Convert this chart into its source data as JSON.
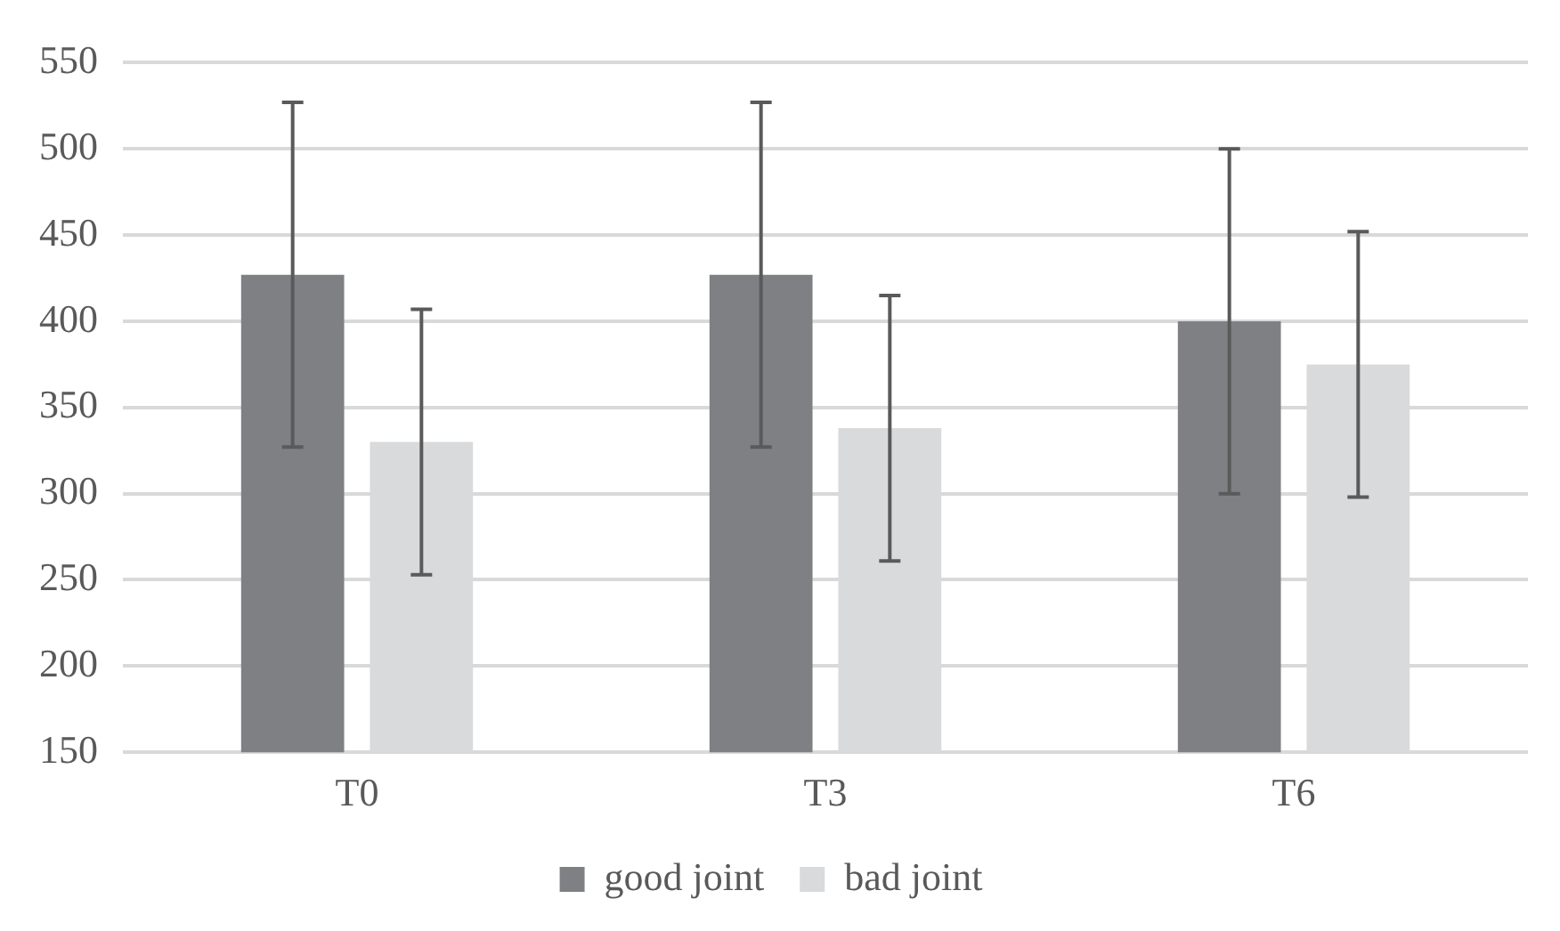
{
  "chart_data": {
    "type": "bar",
    "categories": [
      "T0",
      "T3",
      "T6"
    ],
    "series": [
      {
        "name": "good joint",
        "color": "#7f8084",
        "values": [
          427,
          427,
          400
        ],
        "errors": [
          100,
          100,
          100
        ]
      },
      {
        "name": "bad joint",
        "color": "#d9dadc",
        "values": [
          330,
          338,
          375
        ],
        "errors": [
          77,
          77,
          77
        ]
      }
    ],
    "ylim": [
      150,
      550
    ],
    "yticks": [
      150,
      200,
      250,
      300,
      350,
      400,
      450,
      500,
      550
    ],
    "grid": "y",
    "legend": "bottom"
  }
}
